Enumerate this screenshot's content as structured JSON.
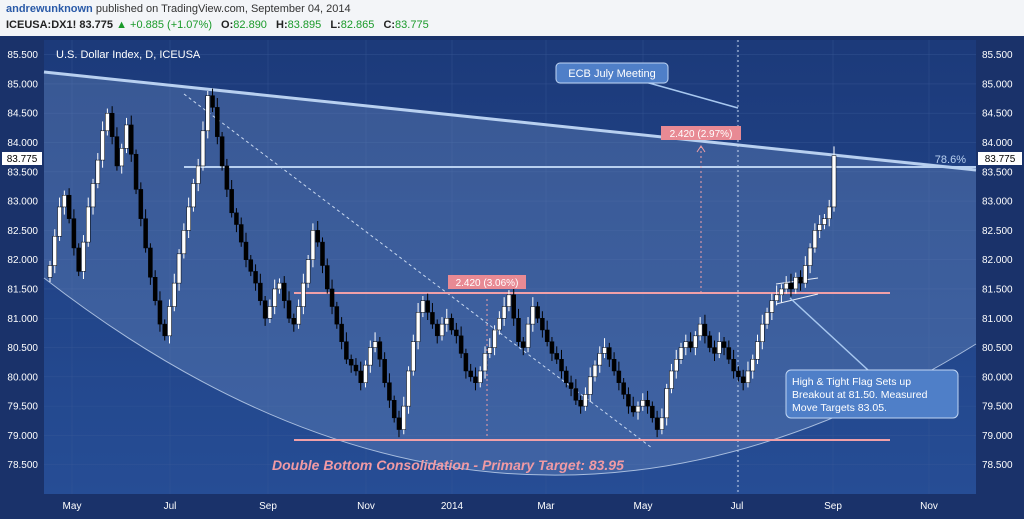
{
  "header": {
    "author": "andrewunknown",
    "published": "published on TradingView.com, September 04, 2014",
    "symbol": "ICEUSA:DX1!",
    "last": "83.775",
    "change": "+0.885 (+1.07%)",
    "o_label": "O:",
    "o_value": "82.890",
    "h_label": "H:",
    "h_value": "83.895",
    "l_label": "L:",
    "l_value": "82.865",
    "c_label": "C:",
    "c_value": "83.775"
  },
  "chart_data": {
    "type": "line",
    "title": "U.S. Dollar Index, D, ICEUSA",
    "ylim": [
      78.0,
      85.75
    ],
    "y_ticks": [
      "85.500",
      "85.000",
      "84.500",
      "84.000",
      "83.500",
      "83.000",
      "82.500",
      "82.000",
      "81.500",
      "81.000",
      "80.500",
      "80.000",
      "79.500",
      "79.000",
      "78.500"
    ],
    "x_ticks": [
      "May",
      "Jul",
      "Sep",
      "Nov",
      "2014",
      "Mar",
      "May",
      "Jul",
      "Sep",
      "Nov"
    ],
    "last_price_label": "83.775",
    "colors": {
      "background": "#1c3a7a",
      "candle_up": "#ffffff",
      "candle_down": "#000000",
      "trend": "#a8c8f0",
      "level": "#f0a0a8"
    },
    "series": [
      {
        "values": [
          81.9,
          82.4,
          82.9,
          83.1,
          82.7,
          82.2,
          81.8,
          82.3,
          82.9,
          83.3,
          83.7,
          84.2,
          84.5,
          84.1,
          83.6,
          83.9,
          84.3,
          83.8,
          83.2,
          82.7,
          82.2,
          81.7,
          81.3,
          80.9,
          80.7,
          81.2,
          81.6,
          82.1,
          82.5,
          82.9,
          83.3,
          83.6,
          84.2,
          84.8,
          84.6,
          84.1,
          83.6,
          83.2,
          82.8,
          82.6,
          82.3,
          82.0,
          81.8,
          81.6,
          81.3,
          81.0,
          81.2,
          81.5,
          81.6,
          81.3,
          81.0,
          80.9,
          81.2,
          81.6,
          82.0,
          82.5,
          82.3,
          81.9,
          81.5,
          81.2,
          80.9,
          80.6,
          80.3,
          80.2,
          80.1,
          79.9,
          80.2,
          80.5,
          80.6,
          80.3,
          79.9,
          79.6,
          79.3,
          79.1,
          79.5,
          80.1,
          80.6,
          81.1,
          81.3,
          81.1,
          80.9,
          80.7,
          80.9,
          81.0,
          80.8,
          80.7,
          80.4,
          80.1,
          80.0,
          79.9,
          80.1,
          80.4,
          80.5,
          80.8,
          81.0,
          81.2,
          81.4,
          81.0,
          80.6,
          80.5,
          80.9,
          81.2,
          81.0,
          80.8,
          80.6,
          80.4,
          80.3,
          80.1,
          79.9,
          79.8,
          79.6,
          79.5,
          79.7,
          80.0,
          80.2,
          80.4,
          80.5,
          80.3,
          80.1,
          79.9,
          79.7,
          79.5,
          79.4,
          79.5,
          79.6,
          79.5,
          79.3,
          79.1,
          79.3,
          79.8,
          80.1,
          80.3,
          80.5,
          80.6,
          80.5,
          80.7,
          80.9,
          80.7,
          80.5,
          80.4,
          80.6,
          80.5,
          80.3,
          80.1,
          80.0,
          79.9,
          80.1,
          80.3,
          80.6,
          80.9,
          81.1,
          81.3,
          81.4,
          81.5,
          81.6,
          81.5,
          81.7,
          81.6,
          81.9,
          82.2,
          82.5,
          82.6,
          82.7,
          82.9,
          83.775
        ]
      }
    ],
    "annotations": {
      "ecb": "ECB July Meeting",
      "fib": "78.6%",
      "measure_top": "2.420 (2.97%)",
      "measure_mid": "2.420 (3.06%)",
      "flag": [
        "High & Tight Flag Sets up",
        "Breakout at 81.50. Measured",
        "Move Targets 83.05."
      ],
      "double_bottom": "Double Bottom Consolidation - Primary Target: 83.95"
    }
  }
}
